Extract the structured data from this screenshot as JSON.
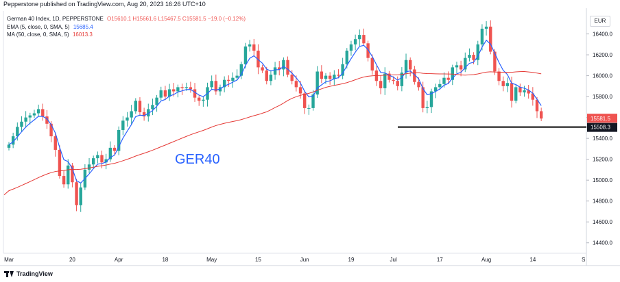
{
  "header": {
    "published": "Pepperstone published on TradingView.com, Aug 20, 2023 16:26 UTC+10"
  },
  "legend": {
    "symbol": "German 40 Index, 1D, PEPPERSTONE",
    "ohlc": "O15610.1  H15661.6  L15467.5  C15581.5  −19.0 (−0.12%)",
    "ema_label": "EMA (5, close, 0, SMA, 5)",
    "ema_value": "15685.4",
    "ma_label": "MA (50, close, 0, SMA, 5)",
    "ma_value": "16013.3"
  },
  "currency_button": "EUR",
  "watermark": "GER40",
  "footer": {
    "brand": "TradingView"
  },
  "colors": {
    "up": "#26a69a",
    "down": "#ef5350",
    "ema": "#2962ff",
    "ma": "#e53935",
    "hline": "#000000"
  },
  "chart_data": {
    "type": "candlestick",
    "y_ticks": [
      "16400.0",
      "16200.0",
      "16000.0",
      "15800.0",
      "15600.0",
      "15400.0",
      "15200.0",
      "15000.0",
      "14800.0",
      "14600.0",
      "14400.0"
    ],
    "ylim": [
      14300,
      16620
    ],
    "x_ticks": [
      "Mar",
      "20",
      "Apr",
      "18",
      "May",
      "15",
      "Jun",
      "19",
      "Jul",
      "17",
      "Aug",
      "14",
      "S"
    ],
    "last_price_label": "15581.5",
    "horizontal_line": {
      "value": 15508.3,
      "label": "15508.3"
    },
    "close": [
      15340,
      15420,
      15510,
      15560,
      15600,
      15620,
      15640,
      15680,
      15610,
      15540,
      15420,
      15290,
      15040,
      14960,
      15140,
      14980,
      14760,
      14930,
      15100,
      15150,
      15210,
      15240,
      15170,
      15200,
      15310,
      15280,
      15480,
      15570,
      15600,
      15660,
      15760,
      15650,
      15610,
      15680,
      15720,
      15790,
      15860,
      15800,
      15870,
      15850,
      15890,
      15880,
      15890,
      15870,
      15790,
      15760,
      15770,
      15890,
      15950,
      15850,
      15890,
      15960,
      15950,
      15980,
      16000,
      16110,
      16280,
      16300,
      16240,
      16080,
      16050,
      15950,
      16010,
      16080,
      16060,
      16150,
      16010,
      15950,
      15890,
      15830,
      15690,
      15690,
      15820,
      16040,
      15970,
      16000,
      15970,
      16010,
      16000,
      16110,
      16240,
      16300,
      16350,
      16390,
      16310,
      16170,
      16050,
      15950,
      15880,
      16020,
      15960,
      15950,
      15900,
      16030,
      16150,
      16060,
      15940,
      15890,
      15690,
      15700,
      15850,
      15890,
      15920,
      15980,
      15960,
      16080,
      16100,
      16060,
      16170,
      16200,
      16150,
      16300,
      16450,
      16470,
      16230,
      16040,
      15950,
      15900,
      15930,
      15760,
      15890,
      15840,
      15860,
      15830,
      15770,
      15660,
      15590
    ]
  }
}
